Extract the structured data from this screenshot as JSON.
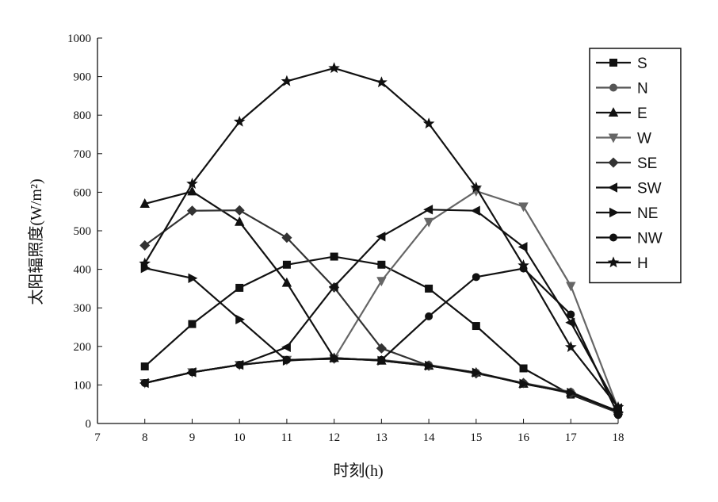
{
  "chart_data": {
    "type": "line",
    "title": "",
    "xlabel": "时刻(h)",
    "ylabel": "太阳辐照度(W/m²)",
    "xlim": [
      7,
      18
    ],
    "ylim": [
      0,
      1000
    ],
    "x_ticks": [
      7,
      8,
      9,
      10,
      11,
      12,
      13,
      14,
      15,
      16,
      17,
      18
    ],
    "y_ticks": [
      0,
      100,
      200,
      300,
      400,
      500,
      600,
      700,
      800,
      900,
      1000
    ],
    "grid": false,
    "legend": "top-right",
    "x": [
      8,
      9,
      10,
      11,
      12,
      13,
      14,
      15,
      16,
      17,
      18
    ],
    "series": [
      {
        "name": "S",
        "marker": "square",
        "color": "#111111",
        "values": [
          148,
          258,
          352,
          412,
          433,
          412,
          350,
          253,
          143,
          75,
          28
        ]
      },
      {
        "name": "N",
        "marker": "circle",
        "color": "#555555",
        "values": [
          105,
          133,
          152,
          165,
          168,
          165,
          152,
          132,
          105,
          82,
          30
        ]
      },
      {
        "name": "E",
        "marker": "triangle-up",
        "color": "#111111",
        "values": [
          570,
          602,
          523,
          365,
          170,
          163,
          150,
          132,
          103,
          80,
          32
        ]
      },
      {
        "name": "W",
        "marker": "triangle-down",
        "color": "#666666",
        "values": [
          105,
          133,
          152,
          165,
          168,
          370,
          523,
          603,
          563,
          357,
          38
        ]
      },
      {
        "name": "SE",
        "marker": "diamond",
        "color": "#333333",
        "values": [
          462,
          552,
          553,
          482,
          353,
          195,
          150,
          130,
          105,
          78,
          28
        ]
      },
      {
        "name": "SW",
        "marker": "triangle-left",
        "color": "#111111",
        "values": [
          105,
          133,
          152,
          198,
          355,
          485,
          555,
          552,
          458,
          262,
          40
        ]
      },
      {
        "name": "NE",
        "marker": "triangle-right",
        "color": "#111111",
        "values": [
          403,
          377,
          270,
          163,
          170,
          163,
          150,
          132,
          103,
          80,
          30
        ]
      },
      {
        "name": "NW",
        "marker": "circle",
        "color": "#111111",
        "values": [
          105,
          133,
          152,
          165,
          168,
          165,
          278,
          380,
          402,
          283,
          22
        ]
      },
      {
        "name": "H",
        "marker": "star",
        "color": "#111111",
        "values": [
          415,
          622,
          783,
          888,
          922,
          885,
          778,
          612,
          410,
          198,
          42
        ]
      }
    ]
  }
}
